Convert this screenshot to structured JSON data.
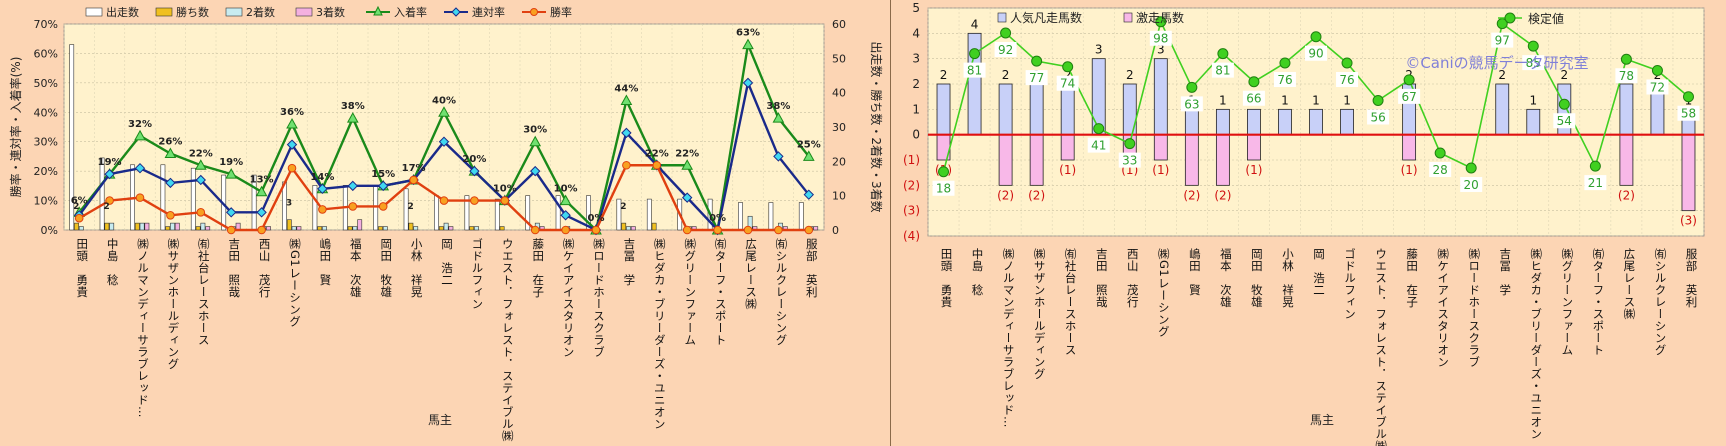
{
  "chart_data": [
    {
      "type": "bar",
      "xlabel": "馬主",
      "ylabel": "勝率・連対率・入着率(%)",
      "y2label": "出走数・勝ち数・2着数・3着数",
      "ylim": [
        0,
        70
      ],
      "y2lim": [
        0,
        60
      ],
      "grid": true,
      "legend_position": "top",
      "yticks": [
        "0%",
        "10%",
        "20%",
        "30%",
        "40%",
        "50%",
        "60%",
        "70%"
      ],
      "y2ticks": [
        "0",
        "10",
        "20",
        "30",
        "40",
        "50",
        "60"
      ],
      "categories": [
        "田頭　勇貴",
        "中島　稔",
        "㈱ノルマンディーサラブレッド…",
        "㈱サザンホールディング",
        "㈲社台レースホース",
        "吉田　照哉",
        "西山　茂行",
        "㈱G1レーシング",
        "嶋田　賢",
        "福本　次雄",
        "岡田　牧雄",
        "小林　祥晃",
        "岡　浩二",
        "ゴドルフィン",
        "ウエスト．フォレスト．ステイブル㈱",
        "藤田　在子",
        "㈱ケイアイスタリオン",
        "㈱ロードホースクラブ",
        "吉冨　学",
        "㈱ヒダカ・ブリーダーズ・ユニオン",
        "㈱グリーンファーム",
        "㈲ターフ・スポート",
        "広尾レース㈱",
        "㈲シルクレーシング",
        "服部　英利"
      ],
      "series": [
        {
          "name": "出走数",
          "axis": "right",
          "color": "#ffffff",
          "values": [
            54,
            21,
            19,
            19,
            18,
            16,
            16,
            14,
            13,
            13,
            13,
            12,
            10,
            10,
            9,
            10,
            10,
            10,
            9,
            9,
            9,
            9,
            8,
            8,
            8
          ]
        },
        {
          "name": "勝ち数",
          "axis": "right",
          "color": "#f0c020",
          "values": [
            2,
            2,
            2,
            1,
            1,
            0,
            0,
            3,
            1,
            1,
            1,
            2,
            1,
            1,
            1,
            0,
            0,
            0,
            2,
            2,
            0,
            0,
            0,
            0,
            0
          ]
        },
        {
          "name": "2着数",
          "axis": "right",
          "color": "#c8ecf0",
          "values": [
            1,
            2,
            2,
            2,
            2,
            1,
            1,
            1,
            1,
            1,
            1,
            1,
            2,
            1,
            0,
            2,
            1,
            0,
            1,
            0,
            1,
            0,
            4,
            2,
            1
          ]
        },
        {
          "name": "3着数",
          "axis": "right",
          "color": "#f4b0e0",
          "values": [
            0,
            0,
            2,
            2,
            1,
            2,
            1,
            1,
            0,
            3,
            0,
            0,
            1,
            0,
            0,
            1,
            0,
            0,
            1,
            0,
            1,
            0,
            1,
            1,
            1
          ]
        },
        {
          "name": "入着率",
          "axis": "left",
          "color": "#1a8a1a",
          "values": [
            6,
            19,
            32,
            26,
            22,
            19,
            13,
            36,
            14,
            38,
            15,
            17,
            40,
            20,
            10,
            30,
            10,
            0,
            44,
            22,
            22,
            0,
            63,
            38,
            25
          ]
        },
        {
          "name": "連対率",
          "axis": "left",
          "color": "#1a2a8a",
          "values": [
            5,
            19,
            21,
            16,
            17,
            6,
            6,
            29,
            14,
            15,
            15,
            17,
            30,
            20,
            10,
            20,
            5,
            0,
            33,
            22,
            11,
            0,
            50,
            25,
            12
          ]
        },
        {
          "name": "勝率",
          "axis": "left",
          "color": "#e04010",
          "values": [
            4,
            10,
            11,
            5,
            6,
            0,
            0,
            21,
            7,
            8,
            8,
            17,
            10,
            10,
            10,
            0,
            0,
            0,
            22,
            22,
            0,
            0,
            0,
            0,
            0
          ]
        }
      ],
      "pct_labels": [
        "6%",
        "19%",
        "32%",
        "26%",
        "22%",
        "19%",
        "13%",
        "36%",
        "14%",
        "38%",
        "15%",
        "17%",
        "40%",
        "20%",
        "10%",
        "30%",
        "10%",
        "0%",
        "44%",
        "22%",
        "22%",
        "0%",
        "63%",
        "38%",
        "25%"
      ],
      "win_labels": [
        "2",
        "2",
        "",
        "",
        "",
        "",
        "",
        "3",
        "",
        "",
        "",
        "2",
        "",
        "",
        "",
        "",
        "",
        "",
        "2",
        "",
        "",
        "",
        "",
        "",
        ""
      ]
    },
    {
      "type": "bar",
      "xlabel": "馬主",
      "ylim": [
        -4,
        5
      ],
      "yticks": [
        "(4)",
        "(3)",
        "(2)",
        "(1)",
        "0",
        "1",
        "2",
        "3",
        "4",
        "5"
      ],
      "grid": true,
      "legend_position": "top",
      "watermark": "©Caniの競馬データ研究室",
      "categories": [
        "田頭　勇貴",
        "中島　稔",
        "㈱ノルマンディーサラブレッド…",
        "㈱サザンホールディング",
        "㈲社台レースホース",
        "吉田　照哉",
        "西山　茂行",
        "㈱G1レーシング",
        "嶋田　賢",
        "福本　次雄",
        "岡田　牧雄",
        "小林　祥晃",
        "岡　浩二",
        "ゴドルフィン",
        "ウエスト．フォレスト．ステイブル㈱",
        "藤田　在子",
        "㈱ケイアイスタリオン",
        "㈱ロードホースクラブ",
        "吉冨　学",
        "㈱ヒダカ・ブリーダーズ・ユニオン",
        "㈱グリーンファーム",
        "㈲ターフ・スポート",
        "広尾レース㈱",
        "㈲シルクレーシング",
        "服部　英利"
      ],
      "series": [
        {
          "name": "人気凡走馬数",
          "color": "#c8d0f8",
          "values": [
            2,
            4,
            2,
            2,
            2,
            3,
            2,
            3,
            1,
            1,
            1,
            1,
            1,
            1,
            0,
            2,
            0,
            0,
            2,
            1,
            2,
            0,
            2,
            2,
            1
          ]
        },
        {
          "name": "激走馬数",
          "color": "#f8b8e8",
          "values": [
            -1,
            0,
            -2,
            -2,
            -1,
            0,
            -1,
            -1,
            -2,
            -2,
            -1,
            0,
            0,
            0,
            0,
            -1,
            0,
            0,
            0,
            0,
            0,
            0,
            -2,
            0,
            -3
          ]
        },
        {
          "name": "検定値",
          "color": "#40d020",
          "values": [
            18,
            81,
            92,
            77,
            74,
            41,
            33,
            98,
            63,
            81,
            66,
            76,
            90,
            76,
            56,
            67,
            28,
            20,
            97,
            85,
            54,
            21,
            78,
            72,
            58
          ]
        }
      ],
      "pos_labels": [
        "2",
        "4",
        "2",
        "2",
        "2",
        "3",
        "2",
        "3",
        "1",
        "1",
        "1",
        "1",
        "1",
        "1",
        "",
        "2",
        "",
        "",
        "2",
        "1",
        "2",
        "",
        "2",
        "2",
        "1"
      ],
      "neg_labels": [
        "(1)",
        "",
        "(2)",
        "(2)",
        "(1)",
        "",
        "(1)",
        "(1)",
        "(2)",
        "(2)",
        "(1)",
        "",
        "",
        "",
        "",
        "(1)",
        "",
        "",
        "",
        "",
        "",
        "",
        "(2)",
        "",
        "(3)"
      ]
    }
  ]
}
